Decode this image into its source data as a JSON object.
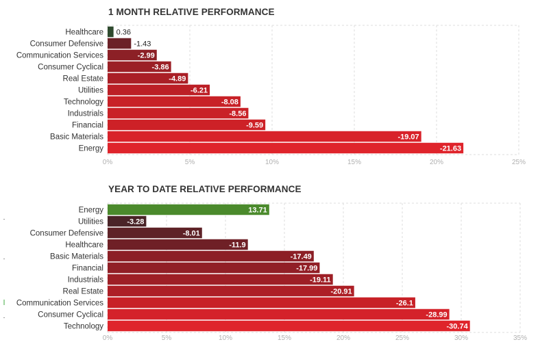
{
  "chart_data": [
    {
      "type": "bar",
      "orientation": "horizontal",
      "title": "1 MONTH RELATIVE PERFORMANCE",
      "categories": [
        "Healthcare",
        "Consumer Defensive",
        "Communication Services",
        "Consumer Cyclical",
        "Real Estate",
        "Utilities",
        "Technology",
        "Industrials",
        "Financial",
        "Basic Materials",
        "Energy"
      ],
      "values": [
        0.36,
        -1.43,
        -2.99,
        -3.86,
        -4.89,
        -6.21,
        -8.08,
        -8.56,
        -9.59,
        -19.07,
        -21.63
      ],
      "value_labels": [
        "0.36",
        "-1.43",
        "-2.99",
        "-3.86",
        "-4.89",
        "-6.21",
        "-8.08",
        "-8.56",
        "-9.59",
        "-19.07",
        "-21.63"
      ],
      "bar_colors": [
        "#2e4a2e",
        "#6b2127",
        "#8c2026",
        "#9b2026",
        "#aa1f26",
        "#bc1f26",
        "#c82127",
        "#c92127",
        "#cd2127",
        "#d8222a",
        "#df242b"
      ],
      "xticks": [
        "0%",
        "5%",
        "10%",
        "15%",
        "20%",
        "25%"
      ],
      "xlim": [
        0,
        25
      ],
      "grid": true
    },
    {
      "type": "bar",
      "orientation": "horizontal",
      "title": "YEAR TO DATE RELATIVE PERFORMANCE",
      "categories": [
        "Energy",
        "Utilities",
        "Consumer Defensive",
        "Healthcare",
        "Basic Materials",
        "Financial",
        "Industrials",
        "Real Estate",
        "Communication Services",
        "Consumer Cyclical",
        "Technology"
      ],
      "values": [
        13.71,
        -3.28,
        -8.01,
        -11.9,
        -17.49,
        -17.99,
        -19.11,
        -20.91,
        -26.1,
        -28.99,
        -30.74
      ],
      "value_labels": [
        "13.71",
        "-3.28",
        "-8.01",
        "-11.9",
        "-17.49",
        "-17.99",
        "-19.11",
        "-20.91",
        "-26.1",
        "-28.99",
        "-30.74"
      ],
      "bar_colors": [
        "#4b8a2c",
        "#4a2428",
        "#5e2227",
        "#6f2026",
        "#8c1f26",
        "#911f26",
        "#9e1f26",
        "#ad1f26",
        "#c82127",
        "#d4222a",
        "#df242b"
      ],
      "xticks": [
        "0%",
        "5%",
        "10%",
        "15%",
        "20%",
        "25%",
        "30%",
        "35%"
      ],
      "xlim": [
        0,
        35
      ],
      "grid": true
    }
  ]
}
